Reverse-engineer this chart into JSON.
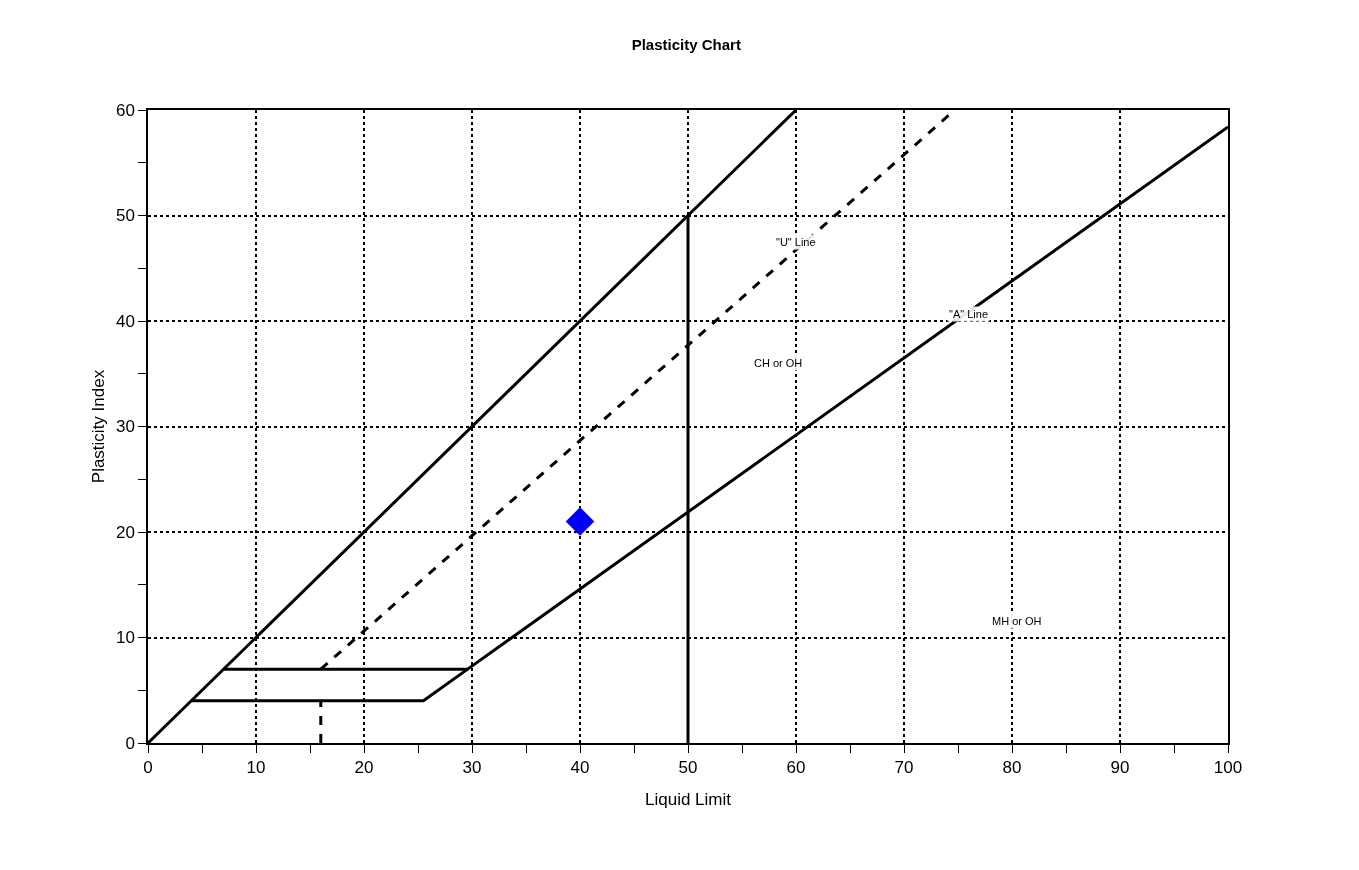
{
  "chart_data": {
    "type": "line",
    "title": "Plasticity Chart",
    "xlabel": "Liquid Limit",
    "ylabel": "Plasticity Index",
    "xlim": [
      0,
      100
    ],
    "ylim": [
      0,
      60
    ],
    "xticks": [
      0,
      {
        "value": 5,
        "label": null
      },
      10,
      {
        "value": 15,
        "label": null
      },
      20,
      {
        "value": 25,
        "label": null
      },
      30,
      {
        "value": 35,
        "label": null
      },
      40,
      {
        "value": 45,
        "label": null
      },
      50,
      {
        "value": 55,
        "label": null
      },
      60,
      {
        "value": 65,
        "label": null
      },
      70,
      {
        "value": 75,
        "label": null
      },
      80,
      {
        "value": 85,
        "label": null
      },
      90,
      {
        "value": 95,
        "label": null
      },
      100
    ],
    "yticks": [
      0,
      {
        "value": 5,
        "label": null
      },
      10,
      {
        "value": 15,
        "label": null
      },
      20,
      {
        "value": 25,
        "label": null
      },
      30,
      {
        "value": 35,
        "label": null
      },
      40,
      {
        "value": 45,
        "label": null
      },
      50,
      {
        "value": 55,
        "label": null
      },
      60
    ],
    "grid": true,
    "series": [
      {
        "color": "#000000",
        "line_style": "solid",
        "x": [
          0,
          60,
          null,
          50,
          50,
          null,
          4,
          25.5,
          29.6,
          100,
          null,
          7,
          29.6
        ],
        "values": [
          0,
          60,
          null,
          0,
          50,
          null,
          4,
          4,
          7,
          58.4,
          null,
          7,
          7
        ]
      },
      {
        "color": "#000000",
        "line_style": "dashed",
        "x": [
          16,
          16,
          null,
          16,
          74.7
        ],
        "values": [
          0,
          4,
          null,
          7,
          60
        ]
      },
      {
        "type": "scatter",
        "color": "#0000ff",
        "marker": "diamond",
        "x": [
          40
        ],
        "values": [
          21
        ]
      }
    ],
    "annotations": [
      {
        "text": "\"U\" Line",
        "x": 60,
        "y": 47.5
      },
      {
        "text": "\"A\" Line",
        "x": 76,
        "y": 40.7
      },
      "CH or OH",
      "MH or OH"
    ]
  }
}
